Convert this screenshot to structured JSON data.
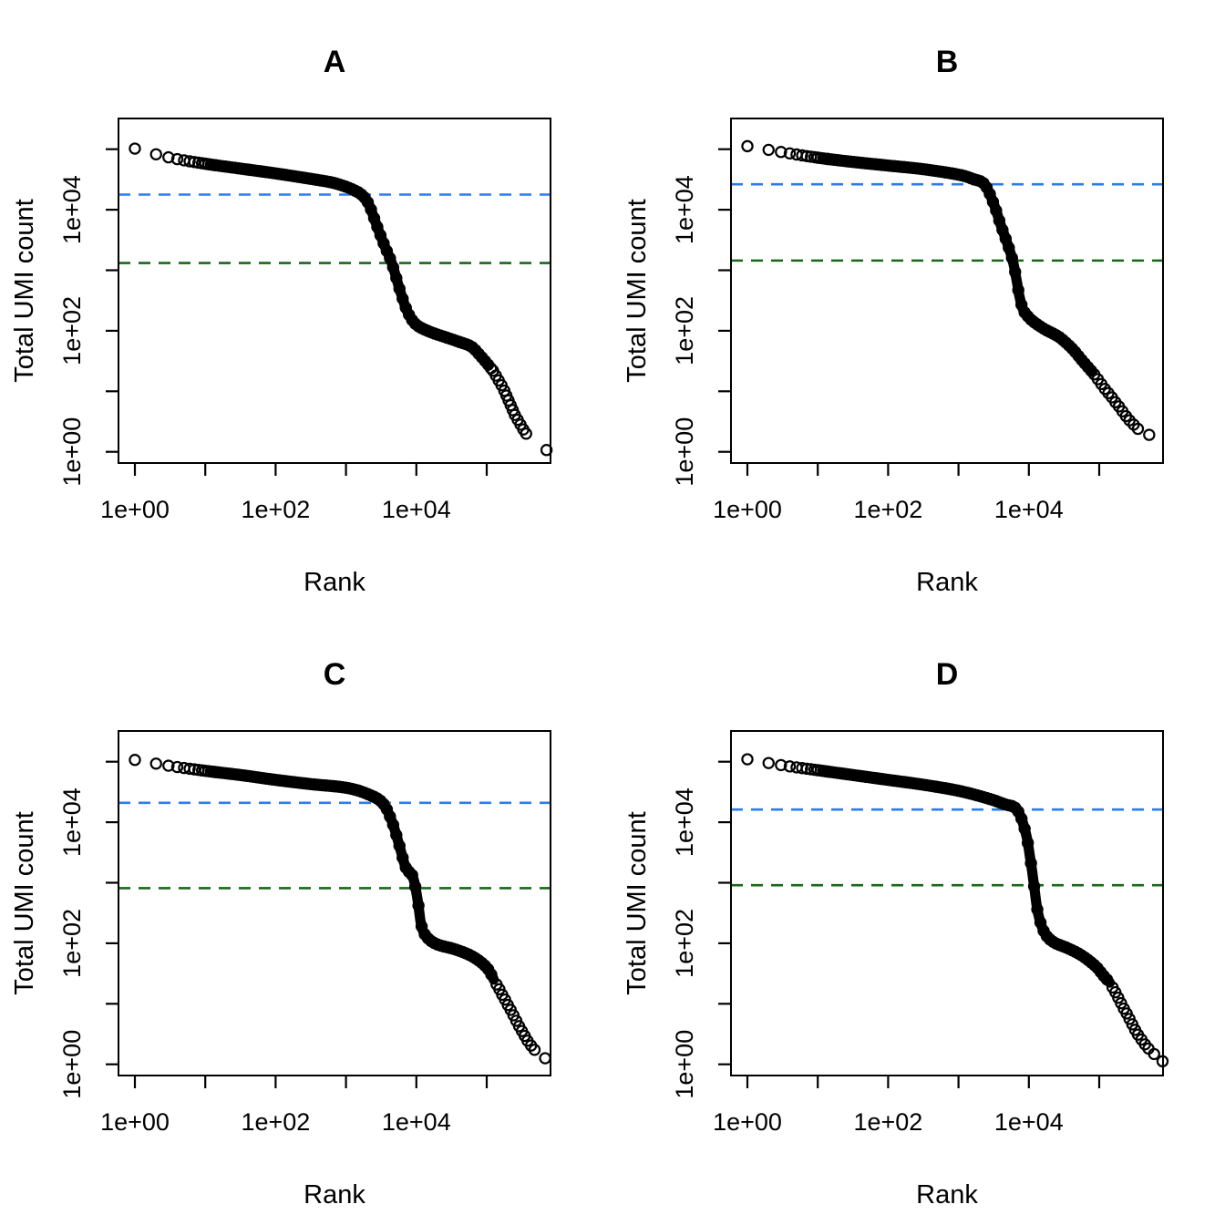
{
  "figure": {
    "xlabel": "Rank",
    "ylabel": "Total UMI count",
    "panel_titles": [
      "A",
      "B",
      "C",
      "D"
    ]
  },
  "colors": {
    "point": "#000000",
    "frame": "#000000",
    "blue_threshold": "#2b7ceb",
    "green_threshold": "#176817"
  },
  "axes": {
    "x_ticks": [
      {
        "log10": 0,
        "label": "1e+00"
      },
      {
        "log10": 1,
        "label": ""
      },
      {
        "log10": 2,
        "label": "1e+02"
      },
      {
        "log10": 3,
        "label": ""
      },
      {
        "log10": 4,
        "label": "1e+04"
      },
      {
        "log10": 5,
        "label": ""
      }
    ],
    "y_ticks": [
      {
        "log10": 0,
        "label": "1e+00"
      },
      {
        "log10": 1,
        "label": ""
      },
      {
        "log10": 2,
        "label": "1e+02"
      },
      {
        "log10": 3,
        "label": ""
      },
      {
        "log10": 4,
        "label": "1e+04"
      },
      {
        "log10": 5,
        "label": ""
      }
    ],
    "x_range_log10": [
      -0.23,
      5.93
    ],
    "y_range_log10": [
      -0.19,
      5.5
    ]
  },
  "chart_data": [
    {
      "type": "scatter",
      "title": "A",
      "xlabel": "Rank",
      "ylabel": "Total UMI count",
      "point_style": "open-circle",
      "hlines": [
        {
          "name": "knee-threshold-line",
          "color_key": "blue_threshold",
          "style": "dashed",
          "y_log10": 4.25
        },
        {
          "name": "inflection-threshold-line",
          "color_key": "green_threshold",
          "style": "dashed",
          "y_log10": 3.12
        }
      ],
      "curve_log10": [
        [
          0,
          5.01
        ],
        [
          0.5,
          4.86
        ],
        [
          1.0,
          4.76
        ],
        [
          1.5,
          4.68
        ],
        [
          2.0,
          4.6
        ],
        [
          2.5,
          4.51
        ],
        [
          2.8,
          4.45
        ],
        [
          3.0,
          4.38
        ],
        [
          3.12,
          4.32
        ],
        [
          3.22,
          4.25
        ],
        [
          3.32,
          4.1
        ],
        [
          3.45,
          3.7
        ],
        [
          3.55,
          3.4
        ],
        [
          3.65,
          3.12
        ],
        [
          3.78,
          2.62
        ],
        [
          3.88,
          2.3
        ],
        [
          4.0,
          2.1
        ],
        [
          4.2,
          1.98
        ],
        [
          4.4,
          1.9
        ],
        [
          4.6,
          1.82
        ],
        [
          4.78,
          1.74
        ],
        [
          4.9,
          1.6
        ],
        [
          5.02,
          1.44
        ]
      ],
      "head_ranks": [
        1,
        2,
        3,
        4,
        5,
        6,
        7,
        8,
        9,
        10,
        11,
        12,
        13,
        14
      ],
      "tail_points_log10": [
        [
          5.06,
          1.38
        ],
        [
          5.09,
          1.34
        ],
        [
          5.13,
          1.26
        ],
        [
          5.17,
          1.18
        ],
        [
          5.21,
          1.1
        ],
        [
          5.25,
          1.01
        ],
        [
          5.28,
          0.93
        ],
        [
          5.31,
          0.85
        ],
        [
          5.34,
          0.77
        ],
        [
          5.37,
          0.69
        ],
        [
          5.4,
          0.61
        ],
        [
          5.44,
          0.53
        ],
        [
          5.48,
          0.45
        ],
        [
          5.52,
          0.37
        ],
        [
          5.56,
          0.3
        ],
        [
          5.85,
          0.03
        ]
      ]
    },
    {
      "type": "scatter",
      "title": "B",
      "xlabel": "Rank",
      "ylabel": "Total UMI count",
      "point_style": "open-circle",
      "hlines": [
        {
          "name": "knee-threshold-line",
          "color_key": "blue_threshold",
          "style": "dashed",
          "y_log10": 4.42
        },
        {
          "name": "inflection-threshold-line",
          "color_key": "green_threshold",
          "style": "dashed",
          "y_log10": 3.16
        }
      ],
      "curve_log10": [
        [
          0,
          5.05
        ],
        [
          0.5,
          4.95
        ],
        [
          1.0,
          4.86
        ],
        [
          1.5,
          4.79
        ],
        [
          2.0,
          4.73
        ],
        [
          2.5,
          4.67
        ],
        [
          3.0,
          4.58
        ],
        [
          3.2,
          4.51
        ],
        [
          3.37,
          4.42
        ],
        [
          3.5,
          4.1
        ],
        [
          3.6,
          3.75
        ],
        [
          3.77,
          3.16
        ],
        [
          3.89,
          2.45
        ],
        [
          4.0,
          2.22
        ],
        [
          4.19,
          2.05
        ],
        [
          4.35,
          1.95
        ],
        [
          4.45,
          1.88
        ],
        [
          4.62,
          1.7
        ],
        [
          4.75,
          1.52
        ],
        [
          4.9,
          1.32
        ]
      ],
      "head_ranks": [
        1,
        2,
        3,
        4,
        5,
        6,
        7,
        8,
        9,
        10,
        11,
        12,
        13,
        14
      ],
      "tail_points_log10": [
        [
          4.93,
          1.28
        ],
        [
          4.98,
          1.2
        ],
        [
          5.03,
          1.12
        ],
        [
          5.08,
          1.04
        ],
        [
          5.13,
          0.97
        ],
        [
          5.18,
          0.9
        ],
        [
          5.23,
          0.82
        ],
        [
          5.28,
          0.75
        ],
        [
          5.33,
          0.67
        ],
        [
          5.38,
          0.59
        ],
        [
          5.43,
          0.52
        ],
        [
          5.49,
          0.45
        ],
        [
          5.55,
          0.38
        ],
        [
          5.71,
          0.28
        ]
      ]
    },
    {
      "type": "scatter",
      "title": "C",
      "xlabel": "Rank",
      "ylabel": "Total UMI count",
      "point_style": "open-circle",
      "hlines": [
        {
          "name": "knee-threshold-line",
          "color_key": "blue_threshold",
          "style": "dashed",
          "y_log10": 4.32
        },
        {
          "name": "inflection-threshold-line",
          "color_key": "green_threshold",
          "style": "dashed",
          "y_log10": 2.91
        }
      ],
      "curve_log10": [
        [
          0,
          5.03
        ],
        [
          0.5,
          4.93
        ],
        [
          1.0,
          4.85
        ],
        [
          1.5,
          4.78
        ],
        [
          2.0,
          4.7
        ],
        [
          2.5,
          4.63
        ],
        [
          3.0,
          4.57
        ],
        [
          3.3,
          4.47
        ],
        [
          3.52,
          4.32
        ],
        [
          3.65,
          4.02
        ],
        [
          3.75,
          3.65
        ],
        [
          3.85,
          3.25
        ],
        [
          3.95,
          3.1
        ],
        [
          4.02,
          2.7
        ],
        [
          4.07,
          2.3
        ],
        [
          4.15,
          2.1
        ],
        [
          4.3,
          1.98
        ],
        [
          4.55,
          1.9
        ],
        [
          4.8,
          1.78
        ],
        [
          5.0,
          1.6
        ],
        [
          5.1,
          1.4
        ]
      ],
      "head_ranks": [
        1,
        2,
        3,
        4,
        5,
        6,
        7,
        8,
        9,
        10,
        11,
        12,
        13,
        14
      ],
      "tail_points_log10": [
        [
          5.14,
          1.32
        ],
        [
          5.18,
          1.24
        ],
        [
          5.22,
          1.15
        ],
        [
          5.26,
          1.07
        ],
        [
          5.3,
          0.98
        ],
        [
          5.34,
          0.9
        ],
        [
          5.38,
          0.81
        ],
        [
          5.42,
          0.72
        ],
        [
          5.46,
          0.63
        ],
        [
          5.5,
          0.55
        ],
        [
          5.54,
          0.47
        ],
        [
          5.58,
          0.39
        ],
        [
          5.63,
          0.31
        ],
        [
          5.68,
          0.24
        ],
        [
          5.83,
          0.1
        ]
      ]
    },
    {
      "type": "scatter",
      "title": "D",
      "xlabel": "Rank",
      "ylabel": "Total UMI count",
      "point_style": "open-circle",
      "hlines": [
        {
          "name": "knee-threshold-line",
          "color_key": "blue_threshold",
          "style": "dashed",
          "y_log10": 4.21
        },
        {
          "name": "inflection-threshold-line",
          "color_key": "green_threshold",
          "style": "dashed",
          "y_log10": 2.96
        }
      ],
      "curve_log10": [
        [
          0,
          5.04
        ],
        [
          0.5,
          4.94
        ],
        [
          1.0,
          4.86
        ],
        [
          1.5,
          4.78
        ],
        [
          2.0,
          4.7
        ],
        [
          2.5,
          4.62
        ],
        [
          3.0,
          4.52
        ],
        [
          3.4,
          4.4
        ],
        [
          3.65,
          4.3
        ],
        [
          3.83,
          4.21
        ],
        [
          3.95,
          3.85
        ],
        [
          4.02,
          3.4
        ],
        [
          4.08,
          2.9
        ],
        [
          4.13,
          2.5
        ],
        [
          4.22,
          2.18
        ],
        [
          4.35,
          2.02
        ],
        [
          4.55,
          1.92
        ],
        [
          4.75,
          1.8
        ],
        [
          4.95,
          1.62
        ],
        [
          5.05,
          1.48
        ],
        [
          5.15,
          1.35
        ]
      ],
      "head_ranks": [
        1,
        2,
        3,
        4,
        5,
        6,
        7,
        8,
        9,
        10,
        11,
        12,
        13,
        14
      ],
      "tail_points_log10": [
        [
          5.19,
          1.27
        ],
        [
          5.23,
          1.19
        ],
        [
          5.27,
          1.1
        ],
        [
          5.31,
          1.01
        ],
        [
          5.35,
          0.92
        ],
        [
          5.39,
          0.84
        ],
        [
          5.43,
          0.75
        ],
        [
          5.47,
          0.66
        ],
        [
          5.51,
          0.57
        ],
        [
          5.55,
          0.49
        ],
        [
          5.6,
          0.41
        ],
        [
          5.65,
          0.33
        ],
        [
          5.7,
          0.26
        ],
        [
          5.78,
          0.17
        ],
        [
          5.9,
          0.05
        ]
      ]
    }
  ]
}
